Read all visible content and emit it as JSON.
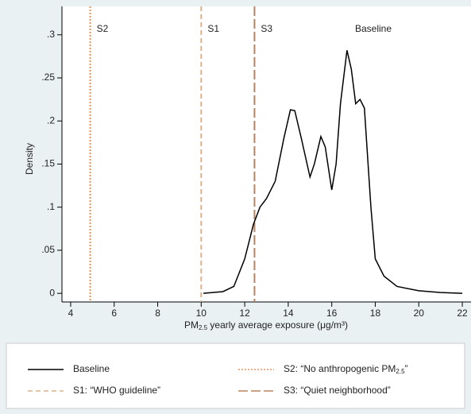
{
  "chart_data": {
    "type": "line",
    "ylabel": "Density",
    "xlabel": [
      "PM",
      "2.5",
      " yearly average exposure (μg/m³)"
    ],
    "xlim": [
      3.6,
      22.4
    ],
    "ylim": [
      -0.01,
      0.333
    ],
    "xticks": [
      4,
      6,
      8,
      10,
      12,
      14,
      16,
      18,
      20,
      22
    ],
    "yticks": [
      0,
      {
        "value": 0.05,
        "label": ".05"
      },
      {
        "value": 0.1,
        "label": ".1"
      },
      {
        "value": 0.15,
        "label": ".15"
      },
      {
        "value": 0.2,
        "label": ".2"
      },
      {
        "value": 0.25,
        "label": ".25"
      },
      {
        "value": 0.3,
        "label": ".3"
      }
    ],
    "series": [
      {
        "name": "Baseline",
        "color": "#000000",
        "x": [
          10.1,
          11,
          11.5,
          12,
          12.4,
          12.7,
          13,
          13.4,
          13.8,
          14.1,
          14.3,
          14.6,
          15,
          15.2,
          15.5,
          15.7,
          16,
          16.2,
          16.4,
          16.7,
          16.9,
          17.1,
          17.3,
          17.5,
          17.8,
          18,
          18.4,
          19,
          20,
          21,
          22
        ],
        "values": [
          0,
          0.002,
          0.008,
          0.04,
          0.08,
          0.1,
          0.11,
          0.13,
          0.18,
          0.213,
          0.212,
          0.18,
          0.135,
          0.15,
          0.182,
          0.17,
          0.12,
          0.15,
          0.22,
          0.282,
          0.26,
          0.22,
          0.225,
          0.215,
          0.1,
          0.04,
          0.02,
          0.008,
          0.003,
          0.001,
          0
        ]
      }
    ],
    "top_label": "Baseline",
    "vlines": [
      {
        "label": "S2",
        "x": 4.9,
        "color": "#e8925a",
        "dash": "2 2",
        "legend": [
          "S2: “No anthropogenic PM",
          "2.5",
          "”"
        ]
      },
      {
        "label": "S1",
        "x": 10,
        "color": "#dcb38c",
        "dash": "6 4",
        "legend": [
          "S1: “WHO guideline”"
        ]
      },
      {
        "label": "S3",
        "x": 12.45,
        "color": "#b9835f",
        "dash": "12 4",
        "legend": [
          "S3: “Quiet neighborhood”"
        ]
      }
    ]
  }
}
